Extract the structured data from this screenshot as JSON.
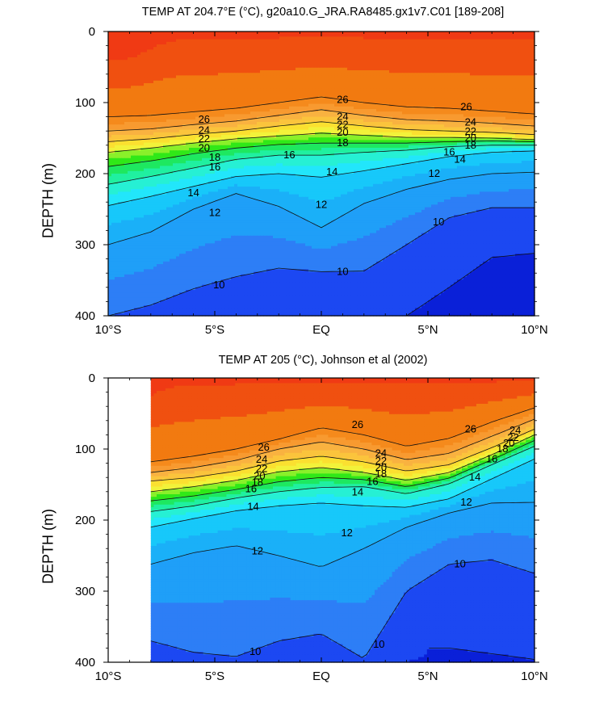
{
  "chart_data": [
    {
      "type": "contour",
      "title": "TEMP AT 204.7°E (°C), g20a10.G_JRA.RA8485.gx1v7.C01 [189-208]",
      "xlabel": "",
      "ylabel": "DEPTH (m)",
      "xlim": [
        -10,
        10
      ],
      "ylim": [
        400,
        0
      ],
      "x_ticks": [
        {
          "value": -10,
          "label": "10°S"
        },
        {
          "value": -5,
          "label": "5°S"
        },
        {
          "value": 0,
          "label": "EQ"
        },
        {
          "value": 5,
          "label": "5°N"
        },
        {
          "value": 10,
          "label": "10°N"
        }
      ],
      "y_ticks": [
        0,
        100,
        200,
        300,
        400
      ],
      "contour_interval": 1,
      "data_extent_lat": [
        -10,
        10
      ],
      "isotherm_depths": {
        "lats": [
          -10,
          -8,
          -6,
          -4,
          -2,
          0,
          2,
          4,
          6,
          8,
          10
        ],
        "T26": [
          120,
          118,
          113,
          108,
          100,
          92,
          100,
          106,
          108,
          112,
          116
        ],
        "T24": [
          140,
          137,
          131,
          126,
          118,
          110,
          118,
          124,
          126,
          129,
          133
        ],
        "T22": [
          155,
          151,
          145,
          140,
          133,
          127,
          133,
          138,
          140,
          142,
          145
        ],
        "T20": [
          170,
          164,
          157,
          151,
          147,
          143,
          146,
          149,
          149,
          150,
          152
        ],
        "T18": [
          190,
          182,
          172,
          164,
          159,
          157,
          157,
          157,
          155,
          154,
          155
        ],
        "T16": [
          215,
          204,
          192,
          180,
          174,
          174,
          170,
          167,
          162,
          160,
          160
        ],
        "T14": [
          245,
          232,
          218,
          204,
          200,
          205,
          196,
          186,
          176,
          170,
          168
        ],
        "T12": [
          300,
          282,
          250,
          228,
          246,
          276,
          242,
          222,
          208,
          200,
          198
        ],
        "T10": [
          400,
          385,
          362,
          345,
          333,
          338,
          337,
          300,
          262,
          248,
          248
        ],
        "T9": [
          null,
          null,
          null,
          null,
          null,
          null,
          null,
          400,
          360,
          318,
          312
        ]
      },
      "contour_labels": [
        {
          "text": "26",
          "lat": 1.0,
          "depth": 96
        },
        {
          "text": "26",
          "lat": -5.5,
          "depth": 124
        },
        {
          "text": "24",
          "lat": -5.5,
          "depth": 139
        },
        {
          "text": "22",
          "lat": -5.5,
          "depth": 151
        },
        {
          "text": "20",
          "lat": -5.5,
          "depth": 164
        },
        {
          "text": "18",
          "lat": -5.0,
          "depth": 177
        },
        {
          "text": "16",
          "lat": -5.0,
          "depth": 191
        },
        {
          "text": "14",
          "lat": -6.0,
          "depth": 227
        },
        {
          "text": "12",
          "lat": -5.0,
          "depth": 255
        },
        {
          "text": "26",
          "lat": 6.8,
          "depth": 106
        },
        {
          "text": "24",
          "lat": 7.0,
          "depth": 128
        },
        {
          "text": "22",
          "lat": 7.0,
          "depth": 141
        },
        {
          "text": "20",
          "lat": 7.0,
          "depth": 150
        },
        {
          "text": "18",
          "lat": 7.0,
          "depth": 160
        },
        {
          "text": "16",
          "lat": 6.0,
          "depth": 170
        },
        {
          "text": "14",
          "lat": 6.5,
          "depth": 180
        },
        {
          "text": "24",
          "lat": 1.0,
          "depth": 120
        },
        {
          "text": "22",
          "lat": 1.0,
          "depth": 131
        },
        {
          "text": "20",
          "lat": 1.0,
          "depth": 142
        },
        {
          "text": "18",
          "lat": 1.0,
          "depth": 157
        },
        {
          "text": "16",
          "lat": -1.5,
          "depth": 174
        },
        {
          "text": "14",
          "lat": 0.5,
          "depth": 198
        },
        {
          "text": "12",
          "lat": 0.0,
          "depth": 244
        },
        {
          "text": "12",
          "lat": 5.3,
          "depth": 200
        },
        {
          "text": "10",
          "lat": 5.5,
          "depth": 268
        },
        {
          "text": "10",
          "lat": 1.0,
          "depth": 338
        },
        {
          "text": "10",
          "lat": -4.8,
          "depth": 357
        }
      ]
    },
    {
      "type": "contour",
      "title": "TEMP AT 205 (°C), Johnson et al (2002)",
      "xlabel": "",
      "ylabel": "DEPTH (m)",
      "xlim": [
        -10,
        10
      ],
      "ylim": [
        400,
        0
      ],
      "x_ticks": [
        {
          "value": -10,
          "label": "10°S"
        },
        {
          "value": -5,
          "label": "5°S"
        },
        {
          "value": 0,
          "label": "EQ"
        },
        {
          "value": 5,
          "label": "5°N"
        },
        {
          "value": 10,
          "label": "10°N"
        }
      ],
      "y_ticks": [
        0,
        100,
        200,
        300,
        400
      ],
      "contour_interval": 1,
      "data_extent_lat": [
        -8,
        10
      ],
      "isotherm_depths": {
        "lats": [
          -8,
          -6,
          -4,
          -2,
          0,
          2,
          4,
          6,
          8,
          10
        ],
        "T26": [
          118,
          110,
          100,
          86,
          70,
          80,
          96,
          85,
          62,
          42
        ],
        "T24": [
          133,
          126,
          116,
          100,
          90,
          100,
          115,
          106,
          82,
          58
        ],
        "T22": [
          145,
          140,
          131,
          117,
          110,
          118,
          131,
          122,
          98,
          72
        ],
        "T20": [
          160,
          153,
          144,
          132,
          126,
          133,
          144,
          133,
          108,
          80
        ],
        "T18": [
          173,
          166,
          157,
          146,
          140,
          143,
          153,
          141,
          115,
          88
        ],
        "T16": [
          188,
          180,
          169,
          160,
          154,
          153,
          163,
          149,
          122,
          96
        ],
        "T14": [
          210,
          198,
          187,
          180,
          176,
          180,
          182,
          170,
          142,
          114
        ],
        "T12": [
          262,
          246,
          236,
          250,
          266,
          240,
          210,
          190,
          176,
          175
        ],
        "T10": [
          370,
          386,
          392,
          370,
          360,
          395,
          300,
          262,
          256,
          275
        ],
        "T9": [
          null,
          null,
          null,
          null,
          null,
          null,
          null,
          380,
          388,
          396
        ]
      },
      "contour_labels": [
        {
          "text": "26",
          "lat": 1.7,
          "depth": 66
        },
        {
          "text": "26",
          "lat": -2.7,
          "depth": 98
        },
        {
          "text": "24",
          "lat": -2.8,
          "depth": 115
        },
        {
          "text": "22",
          "lat": -2.8,
          "depth": 128
        },
        {
          "text": "20",
          "lat": -2.9,
          "depth": 138
        },
        {
          "text": "18",
          "lat": -3.0,
          "depth": 147
        },
        {
          "text": "16",
          "lat": -3.3,
          "depth": 156
        },
        {
          "text": "14",
          "lat": -3.2,
          "depth": 181
        },
        {
          "text": "24",
          "lat": 2.8,
          "depth": 106
        },
        {
          "text": "22",
          "lat": 2.8,
          "depth": 117
        },
        {
          "text": "20",
          "lat": 2.8,
          "depth": 126
        },
        {
          "text": "18",
          "lat": 2.8,
          "depth": 135
        },
        {
          "text": "16",
          "lat": 2.4,
          "depth": 146
        },
        {
          "text": "14",
          "lat": 1.7,
          "depth": 161
        },
        {
          "text": "12",
          "lat": 1.2,
          "depth": 218
        },
        {
          "text": "12",
          "lat": -3.0,
          "depth": 244
        },
        {
          "text": "26",
          "lat": 7.0,
          "depth": 72
        },
        {
          "text": "24",
          "lat": 9.1,
          "depth": 74
        },
        {
          "text": "22",
          "lat": 9.0,
          "depth": 84
        },
        {
          "text": "20",
          "lat": 8.8,
          "depth": 92
        },
        {
          "text": "18",
          "lat": 8.5,
          "depth": 100
        },
        {
          "text": "16",
          "lat": 8.0,
          "depth": 114
        },
        {
          "text": "14",
          "lat": 7.2,
          "depth": 140
        },
        {
          "text": "12",
          "lat": 6.8,
          "depth": 175
        },
        {
          "text": "10",
          "lat": 6.5,
          "depth": 262
        },
        {
          "text": "10",
          "lat": 2.7,
          "depth": 375
        },
        {
          "text": "10",
          "lat": -3.1,
          "depth": 385
        }
      ]
    }
  ],
  "temp_colors": [
    {
      "t": 6,
      "color": "#0a20d8"
    },
    {
      "t": 9,
      "color": "#1c48f2"
    },
    {
      "t": 10,
      "color": "#2d7ef6"
    },
    {
      "t": 11,
      "color": "#1f9ff8"
    },
    {
      "t": 12,
      "color": "#1ab0f8"
    },
    {
      "t": 13,
      "color": "#17c8fa"
    },
    {
      "t": 14,
      "color": "#22e6fb"
    },
    {
      "t": 15,
      "color": "#26f0d4"
    },
    {
      "t": 16,
      "color": "#20f0a0"
    },
    {
      "t": 17,
      "color": "#1ee860"
    },
    {
      "t": 18,
      "color": "#30e818"
    },
    {
      "t": 19,
      "color": "#8af02a"
    },
    {
      "t": 20,
      "color": "#f2f23a"
    },
    {
      "t": 21,
      "color": "#fbe030"
    },
    {
      "t": 22,
      "color": "#fbc43c"
    },
    {
      "t": 23,
      "color": "#f9b240"
    },
    {
      "t": 24,
      "color": "#f89a30"
    },
    {
      "t": 25,
      "color": "#f58a1c"
    },
    {
      "t": 26,
      "color": "#f27a10"
    },
    {
      "t": 27,
      "color": "#f05010"
    },
    {
      "t": 28,
      "color": "#f03a14"
    },
    {
      "t": 29,
      "color": "#f01010"
    }
  ]
}
